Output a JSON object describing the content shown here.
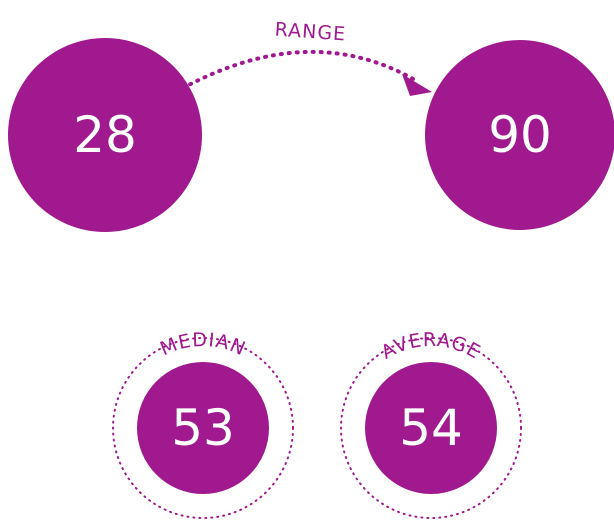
{
  "range": {
    "label": "RANGE",
    "from": 28,
    "to": 90
  },
  "stats": [
    {
      "label": "MEDIAN",
      "value": 53
    },
    {
      "label": "AVERAGE",
      "value": 54
    }
  ]
}
